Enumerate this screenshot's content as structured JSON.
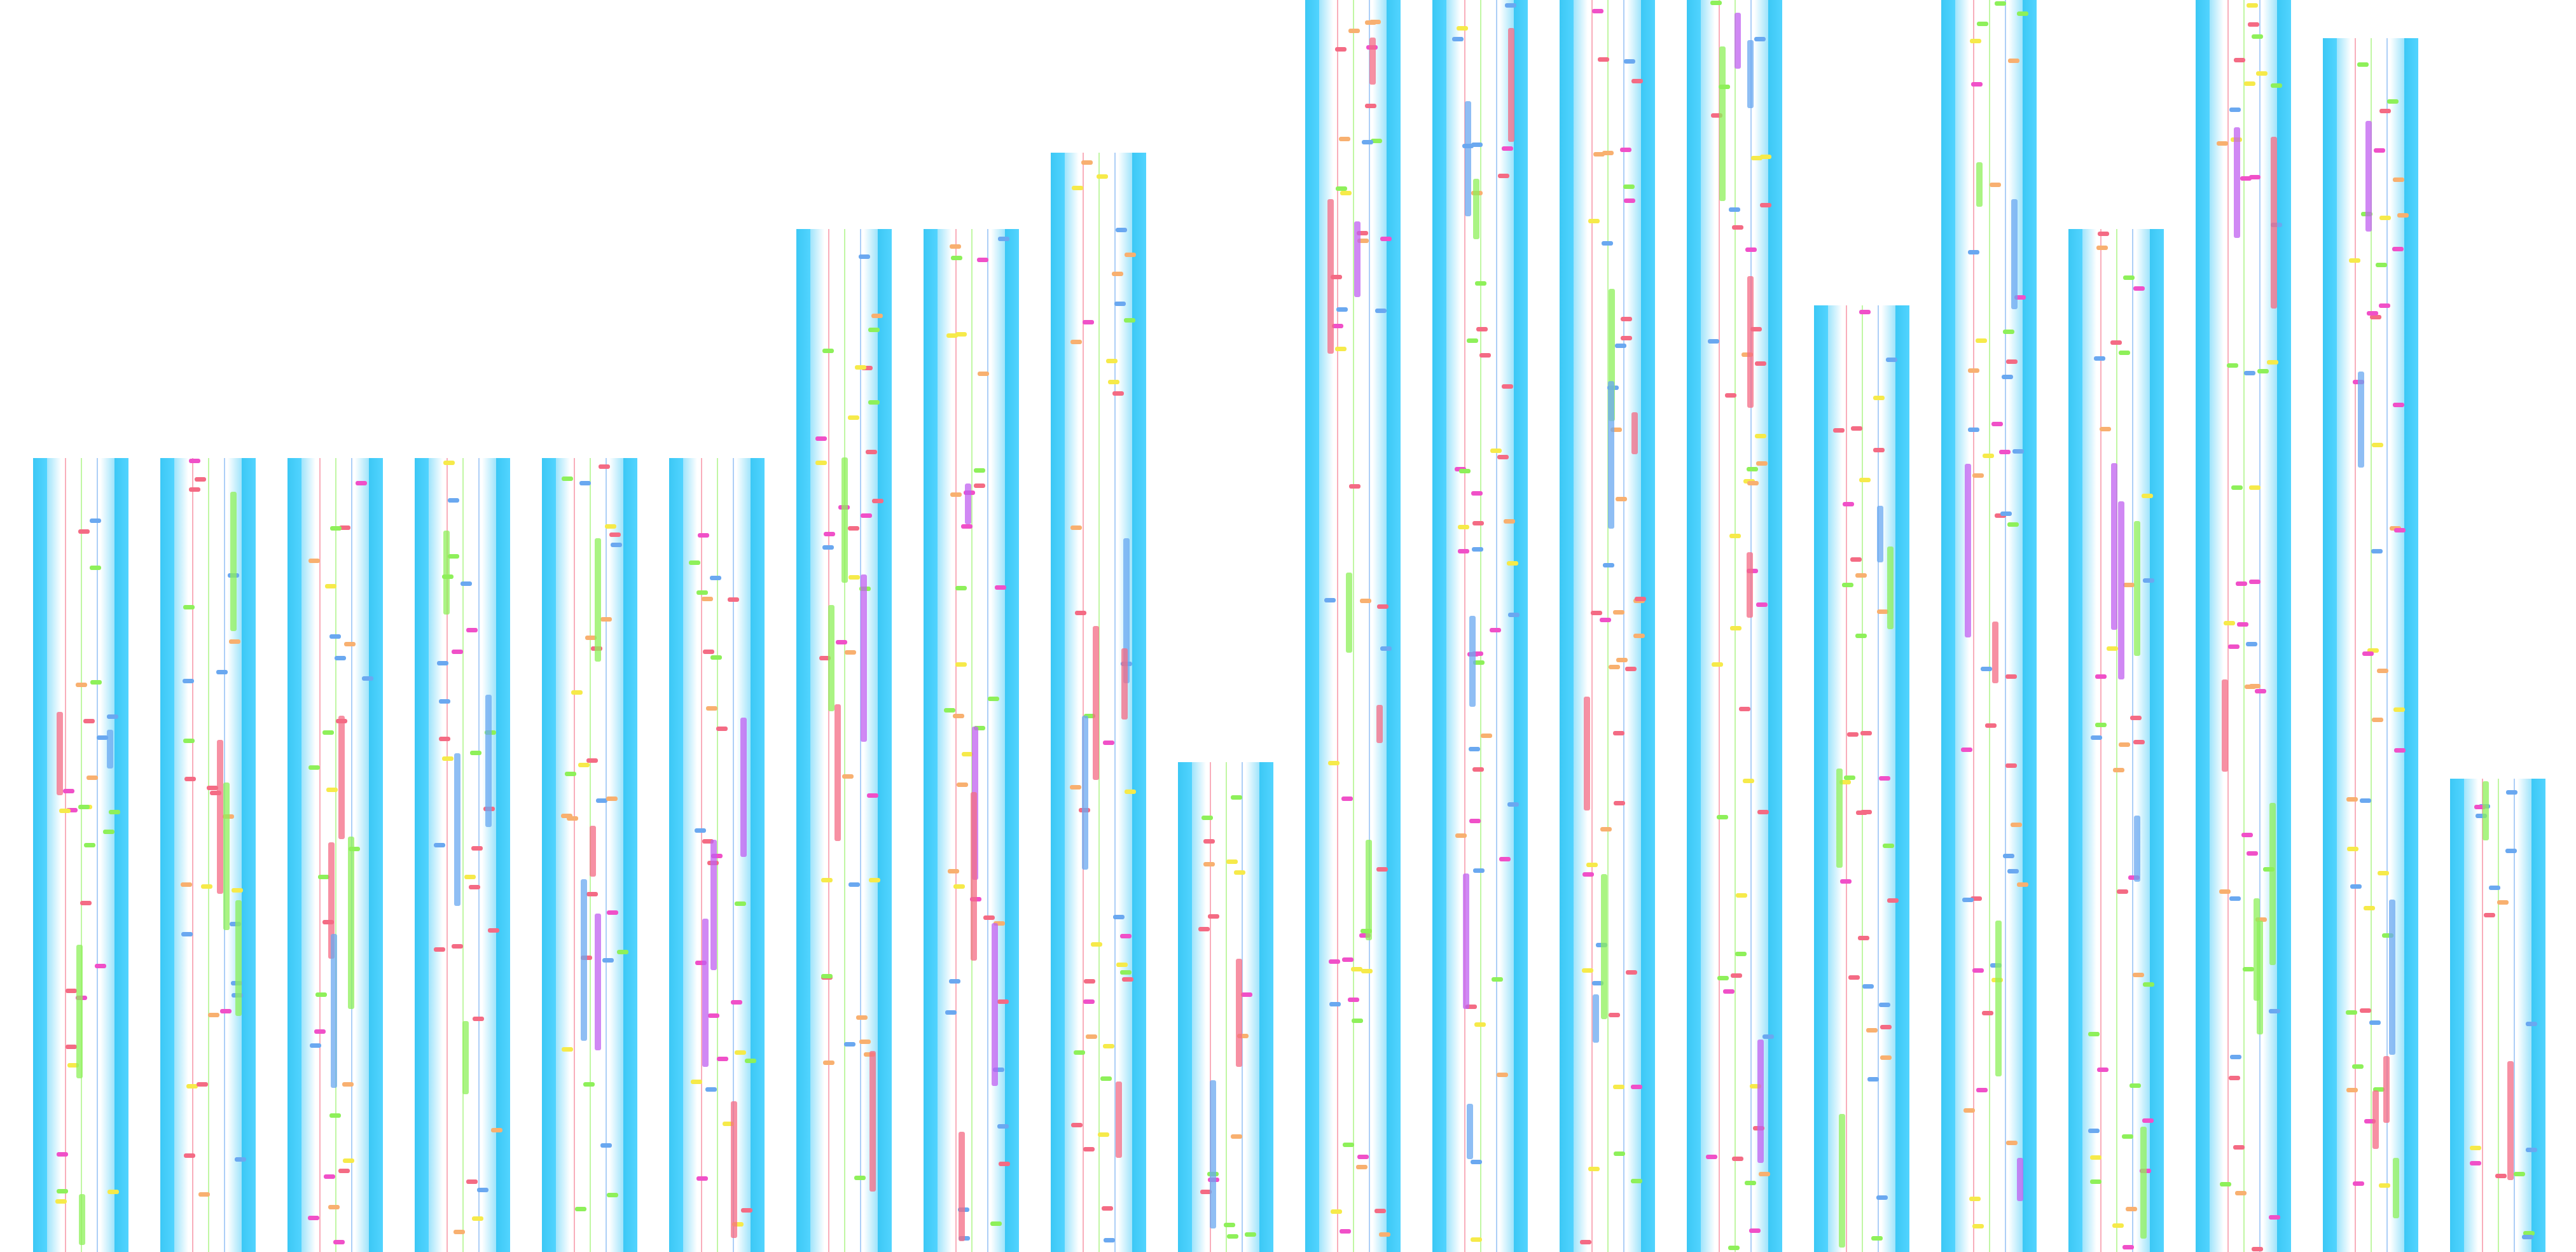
{
  "chart_view": {
    "column_count": 20,
    "colors": {
      "rail": "#3cc8f5",
      "lane_red": "#f46b84",
      "lane_green": "#8ef05a",
      "lane_blue": "#6aa8f0",
      "air_purple": "#c060f0",
      "tap_yellow": "#f6ea4a",
      "ex_orange": "#f8b070",
      "flick_pink": "#f050c8"
    }
  }
}
